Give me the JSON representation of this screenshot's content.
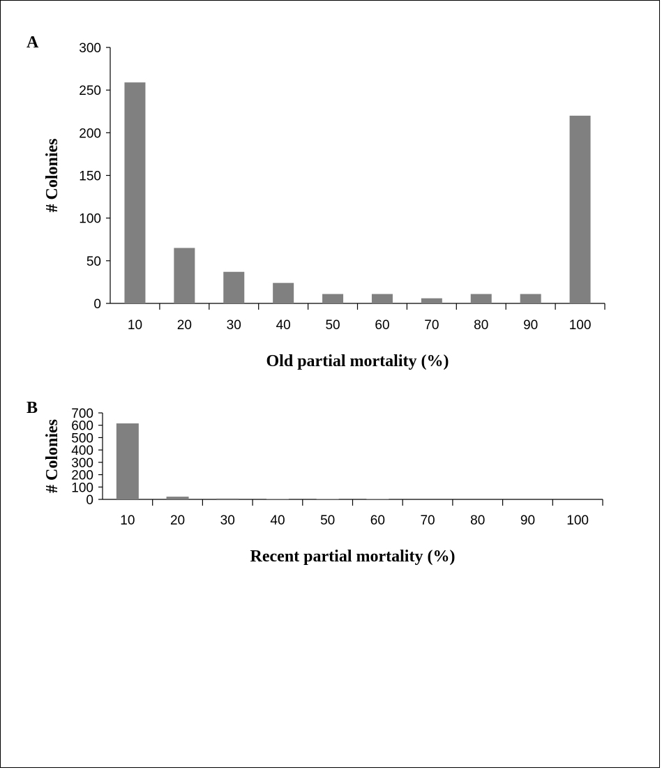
{
  "chart_data": [
    {
      "type": "bar",
      "panel_label": "A",
      "categories": [
        "10",
        "20",
        "30",
        "40",
        "50",
        "60",
        "70",
        "80",
        "90",
        "100"
      ],
      "values": [
        259,
        65,
        37,
        24,
        11,
        11,
        6,
        11,
        11,
        220
      ],
      "xlabel": "Old partial mortality (%)",
      "ylabel": "# Colonies",
      "ylim": [
        0,
        300
      ],
      "yticks": [
        "0",
        "50",
        "100",
        "150",
        "200",
        "250",
        "300"
      ],
      "grid": false,
      "bar_color": "#808080"
    },
    {
      "type": "bar",
      "panel_label": "B",
      "categories": [
        "10",
        "20",
        "30",
        "40",
        "50",
        "60",
        "70",
        "80",
        "90",
        "100"
      ],
      "values": [
        615,
        22,
        7,
        3,
        3,
        3,
        0,
        0,
        0,
        0
      ],
      "xlabel": "Recent partial mortality (%)",
      "ylabel": "# Colonies",
      "ylim": [
        0,
        700
      ],
      "yticks": [
        "0",
        "100",
        "200",
        "300",
        "400",
        "500",
        "600",
        "700"
      ],
      "grid": false,
      "bar_color": "#808080"
    }
  ]
}
